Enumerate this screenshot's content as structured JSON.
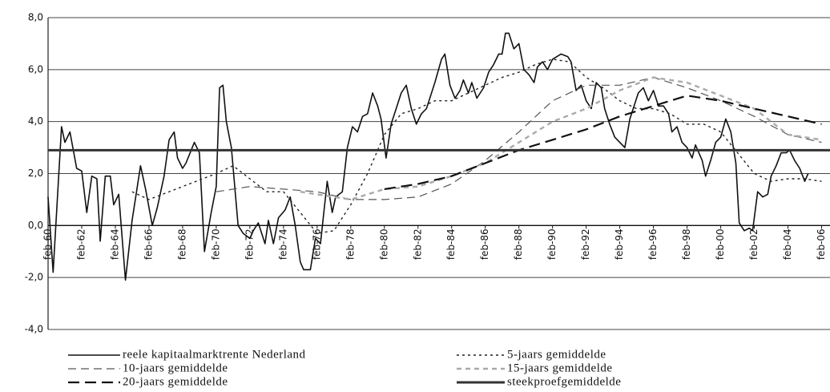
{
  "chart_data": {
    "type": "line",
    "xlim": [
      1960,
      2006.5
    ],
    "ylim": [
      -4,
      8
    ],
    "grid": true,
    "xticks": [
      {
        "value": 1960,
        "label": "feb-60"
      },
      {
        "value": 1962,
        "label": "feb-62"
      },
      {
        "value": 1964,
        "label": "feb-64"
      },
      {
        "value": 1966,
        "label": "feb-66"
      },
      {
        "value": 1968,
        "label": "feb-68"
      },
      {
        "value": 1970,
        "label": "feb-70"
      },
      {
        "value": 1972,
        "label": "feb-72"
      },
      {
        "value": 1974,
        "label": "feb-74"
      },
      {
        "value": 1976,
        "label": "feb-76"
      },
      {
        "value": 1978,
        "label": "feb-78"
      },
      {
        "value": 1980,
        "label": "feb-80"
      },
      {
        "value": 1982,
        "label": "feb-82"
      },
      {
        "value": 1984,
        "label": "feb-84"
      },
      {
        "value": 1986,
        "label": "feb-86"
      },
      {
        "value": 1988,
        "label": "feb-88"
      },
      {
        "value": 1990,
        "label": "feb-90"
      },
      {
        "value": 1992,
        "label": "feb-92"
      },
      {
        "value": 1994,
        "label": "feb-94"
      },
      {
        "value": 1996,
        "label": "feb-96"
      },
      {
        "value": 1998,
        "label": "feb-98"
      },
      {
        "value": 2000,
        "label": "feb-00"
      },
      {
        "value": 2002,
        "label": "feb-02"
      },
      {
        "value": 2004,
        "label": "feb-04"
      },
      {
        "value": 2006,
        "label": "feb-06"
      }
    ],
    "yticks": [
      {
        "value": -4,
        "label": "-4,0"
      },
      {
        "value": -2,
        "label": "-2,0"
      },
      {
        "value": 0,
        "label": "0,0"
      },
      {
        "value": 2,
        "label": "2,0"
      },
      {
        "value": 4,
        "label": "4,0"
      },
      {
        "value": 6,
        "label": "6,0"
      },
      {
        "value": 8,
        "label": "8,0"
      }
    ],
    "series": [
      {
        "name": "reele kapitaalmarktrente Nederland",
        "color": "#111111",
        "width": 1.6,
        "dash": "none",
        "x": [
          1960,
          1960.3,
          1960.8,
          1961,
          1961.3,
          1961.7,
          1962,
          1962.3,
          1962.6,
          1962.9,
          1963.1,
          1963.4,
          1963.7,
          1963.9,
          1964.2,
          1964.6,
          1965,
          1965.5,
          1965.8,
          1966.2,
          1966.5,
          1966.9,
          1967.2,
          1967.5,
          1967.7,
          1968,
          1968.2,
          1968.7,
          1969,
          1969.3,
          1969.7,
          1970,
          1970.2,
          1970.4,
          1970.6,
          1970.9,
          1971.3,
          1971.6,
          1972,
          1972.2,
          1972.5,
          1972.9,
          1973.1,
          1973.4,
          1973.7,
          1974.1,
          1974.4,
          1974.7,
          1975,
          1975.2,
          1975.6,
          1975.9,
          1976.2,
          1976.6,
          1976.9,
          1977.1,
          1977.5,
          1977.8,
          1978.1,
          1978.4,
          1978.7,
          1979,
          1979.3,
          1979.6,
          1979.8,
          1980.1,
          1980.4,
          1980.7,
          1981,
          1981.3,
          1981.6,
          1981.9,
          1982.2,
          1982.5,
          1982.7,
          1983,
          1983.4,
          1983.6,
          1983.9,
          1984.2,
          1984.5,
          1984.7,
          1985,
          1985.2,
          1985.5,
          1985.9,
          1986.2,
          1986.5,
          1986.8,
          1987,
          1987.2,
          1987.4,
          1987.7,
          1988,
          1988.3,
          1988.6,
          1988.9,
          1989.1,
          1989.4,
          1989.7,
          1990,
          1990.5,
          1990.9,
          1991.1,
          1991.4,
          1991.7,
          1992,
          1992.3,
          1992.6,
          1992.9,
          1993.1,
          1993.4,
          1993.7,
          1994,
          1994.3,
          1994.6,
          1994.9,
          1995.1,
          1995.4,
          1995.7,
          1996,
          1996.3,
          1996.6,
          1996.9,
          1997.1,
          1997.4,
          1997.7,
          1998,
          1998.3,
          1998.5,
          1998.9,
          1999.1,
          1999.4,
          1999.7,
          2000,
          2000.3,
          2000.6,
          2000.9,
          2001.1,
          2001.4,
          2001.7,
          2001.9,
          2002.2,
          2002.5,
          2002.8,
          2003,
          2003.3,
          2003.6,
          2003.9,
          2004.1,
          2004.4,
          2004.7,
          2005,
          2005.2
        ],
        "values": [
          1.1,
          -1.8,
          3.8,
          3.2,
          3.6,
          2.2,
          2.1,
          0.5,
          1.9,
          1.8,
          -0.6,
          1.9,
          1.9,
          0.8,
          1.2,
          -2.1,
          0.2,
          2.3,
          1.4,
          0.0,
          0.7,
          1.9,
          3.3,
          3.6,
          2.6,
          2.2,
          2.4,
          3.2,
          2.8,
          -1.0,
          0.5,
          1.5,
          5.3,
          5.4,
          4.0,
          3.0,
          0.0,
          -0.3,
          -0.5,
          -0.2,
          0.1,
          -0.7,
          0.2,
          -0.7,
          0.3,
          0.6,
          1.1,
          0.0,
          -1.4,
          -1.7,
          -1.7,
          -0.5,
          -0.7,
          1.7,
          0.5,
          1.1,
          1.3,
          3.0,
          3.8,
          3.6,
          4.2,
          4.3,
          5.1,
          4.6,
          4.1,
          2.6,
          3.9,
          4.5,
          5.1,
          5.4,
          4.5,
          3.9,
          4.3,
          4.5,
          4.9,
          5.5,
          6.4,
          6.6,
          5.4,
          4.9,
          5.2,
          5.6,
          5.1,
          5.5,
          4.9,
          5.3,
          5.9,
          6.2,
          6.6,
          6.6,
          7.4,
          7.4,
          6.8,
          7.0,
          6.0,
          5.8,
          5.5,
          6.1,
          6.3,
          6.0,
          6.4,
          6.6,
          6.5,
          6.3,
          5.2,
          5.4,
          4.8,
          4.5,
          5.5,
          5.3,
          4.5,
          3.9,
          3.4,
          3.2,
          3.0,
          4.1,
          4.7,
          5.1,
          5.3,
          4.8,
          5.2,
          4.6,
          4.6,
          4.3,
          3.6,
          3.8,
          3.2,
          3.0,
          2.6,
          3.1,
          2.5,
          1.9,
          2.5,
          3.2,
          3.4,
          4.1,
          3.6,
          2.4,
          0.1,
          -0.2,
          -0.1,
          -0.2,
          1.3,
          1.1,
          1.2,
          1.9,
          2.3,
          2.8,
          2.8,
          2.9,
          2.5,
          2.2,
          1.7,
          2.0
        ]
      },
      {
        "name": "5-jaars gemiddelde",
        "color": "#222222",
        "width": 1.4,
        "dash": "3 4",
        "x": [
          1965,
          1966,
          1968,
          1970,
          1971,
          1972,
          1973,
          1974,
          1975,
          1976,
          1977,
          1978,
          1979,
          1980,
          1981,
          1982,
          1983,
          1984,
          1985,
          1986,
          1987,
          1988,
          1989,
          1990,
          1991,
          1992,
          1993,
          1994,
          1995,
          1996,
          1997,
          1998,
          1999,
          2000,
          2001,
          2002,
          2003,
          2004,
          2005,
          2006
        ],
        "values": [
          1.3,
          1.0,
          1.5,
          2.0,
          2.3,
          1.8,
          1.3,
          1.3,
          0.5,
          -0.3,
          -0.2,
          0.8,
          2.0,
          3.5,
          4.3,
          4.5,
          4.8,
          4.8,
          5.1,
          5.4,
          5.7,
          5.9,
          6.2,
          6.4,
          6.3,
          5.7,
          5.3,
          4.8,
          4.5,
          4.5,
          4.3,
          3.9,
          3.9,
          3.6,
          2.8,
          2.0,
          1.7,
          1.8,
          1.8,
          1.7
        ]
      },
      {
        "name": "10-jaars gemiddelde",
        "color": "#555555",
        "width": 1.2,
        "dash": "10 6",
        "x": [
          1970,
          1972,
          1974,
          1976,
          1978,
          1980,
          1982,
          1984,
          1986,
          1988,
          1990,
          1992,
          1994,
          1996,
          1998,
          2000,
          2002,
          2004,
          2006
        ],
        "values": [
          1.3,
          1.5,
          1.4,
          1.3,
          1.0,
          1.0,
          1.1,
          1.6,
          2.5,
          3.6,
          4.8,
          5.4,
          5.4,
          5.7,
          5.3,
          4.8,
          4.2,
          3.5,
          3.2
        ]
      },
      {
        "name": "15-jaars gemiddelde",
        "color": "#aaaaaa",
        "width": 2.4,
        "dash": "6 5",
        "x": [
          1975,
          1978,
          1980,
          1982,
          1984,
          1986,
          1988,
          1990,
          1992,
          1994,
          1996,
          1998,
          2000,
          2002,
          2004,
          2006
        ],
        "values": [
          1.3,
          1.0,
          1.4,
          1.5,
          1.9,
          2.4,
          3.2,
          4.0,
          4.5,
          5.2,
          5.7,
          5.5,
          5.0,
          4.5,
          3.5,
          3.3
        ]
      },
      {
        "name": "20-jaars gemiddelde",
        "color": "#111111",
        "width": 2.2,
        "dash": "14 7",
        "x": [
          1980,
          1982,
          1984,
          1986,
          1988,
          1990,
          1992,
          1994,
          1996,
          1998,
          2000,
          2002,
          2004,
          2006
        ],
        "values": [
          1.4,
          1.6,
          1.9,
          2.4,
          2.9,
          3.3,
          3.7,
          4.2,
          4.6,
          5.0,
          4.8,
          4.5,
          4.2,
          3.9
        ]
      },
      {
        "name": "steekproefgemiddelde",
        "color": "#333333",
        "width": 3,
        "dash": "none",
        "values": [
          2.9
        ]
      }
    ]
  }
}
